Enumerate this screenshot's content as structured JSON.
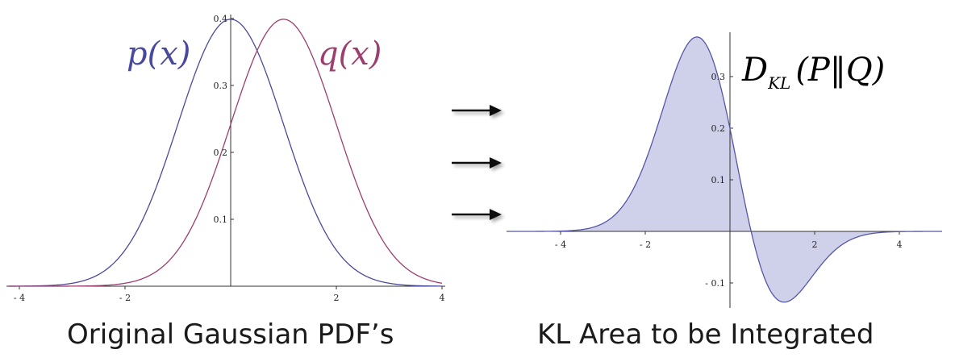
{
  "colors": {
    "p": "#4a4a9c",
    "q": "#9c3f6e",
    "kl_line": "#5656a8",
    "kl_fill": "#cfd0ea",
    "axis": "#333333"
  },
  "captions": {
    "left": "Original Gaussian PDF’s",
    "right": "KL Area to be Integrated"
  },
  "arrows": {
    "count": 3,
    "icon": "arrow-right-icon"
  },
  "chart_data": [
    {
      "type": "line",
      "title": "Original Gaussian PDF’s",
      "xlim": [
        -4.2,
        4
      ],
      "ylim": [
        0,
        0.4
      ],
      "x_ticks": [
        -4,
        -2,
        2,
        4
      ],
      "x_tick_labels": [
        "- 4",
        "- 2",
        "2",
        "4"
      ],
      "y_ticks": [
        0.1,
        0.2,
        0.3,
        0.4
      ],
      "y_tick_labels": [
        "0.1",
        "0.2",
        "0.3",
        "0.4"
      ],
      "series": [
        {
          "name": "p(x)",
          "distribution": "normal",
          "mean": 0,
          "sd": 1,
          "x": [
            -4,
            -3,
            -2,
            -1.5,
            -1,
            -0.5,
            0,
            0.5,
            1,
            1.5,
            2,
            3,
            4
          ],
          "y": [
            0.0001,
            0.0044,
            0.054,
            0.1295,
            0.242,
            0.3521,
            0.3989,
            0.3521,
            0.242,
            0.1295,
            0.054,
            0.0044,
            0.0001
          ]
        },
        {
          "name": "q(x)",
          "distribution": "normal",
          "mean": 1,
          "sd": 1,
          "x": [
            -4,
            -3,
            -2,
            -1,
            -0.5,
            0,
            0.5,
            1,
            1.5,
            2,
            2.5,
            3,
            4
          ],
          "y": [
            0.0,
            0.0001,
            0.0044,
            0.054,
            0.1295,
            0.242,
            0.3521,
            0.3989,
            0.3521,
            0.242,
            0.1295,
            0.054,
            0.0044
          ]
        }
      ],
      "curve_labels": [
        "p(x)",
        "q(x)"
      ]
    },
    {
      "type": "area",
      "title": "KL Area to be Integrated",
      "label_prefix": "D",
      "label_subscript": "KL",
      "label_body": "(P‖Q)",
      "xlim": [
        -5,
        5
      ],
      "ylim": [
        -0.13,
        0.38
      ],
      "x_ticks": [
        -4,
        -2,
        2,
        4
      ],
      "x_tick_labels": [
        "- 4",
        "- 2",
        "2",
        "4"
      ],
      "y_ticks": [
        -0.1,
        0.1,
        0.2,
        0.3
      ],
      "y_tick_labels": [
        "- 0.1",
        "0.1",
        "0.2",
        "0.3"
      ],
      "integrand": "p(x) * log(p(x)/q(x)), p = N(0,1), q = N(1,1)",
      "x": [
        -4,
        -3,
        -2,
        -1.5,
        -1,
        -0.5,
        0,
        0.5,
        1,
        1.5,
        2,
        3,
        4
      ],
      "y": [
        0.0006,
        0.0154,
        0.1355,
        0.2589,
        0.3631,
        0.3521,
        0.1995,
        0.0,
        -0.121,
        -0.1295,
        -0.081,
        -0.011,
        -0.0005
      ]
    }
  ]
}
